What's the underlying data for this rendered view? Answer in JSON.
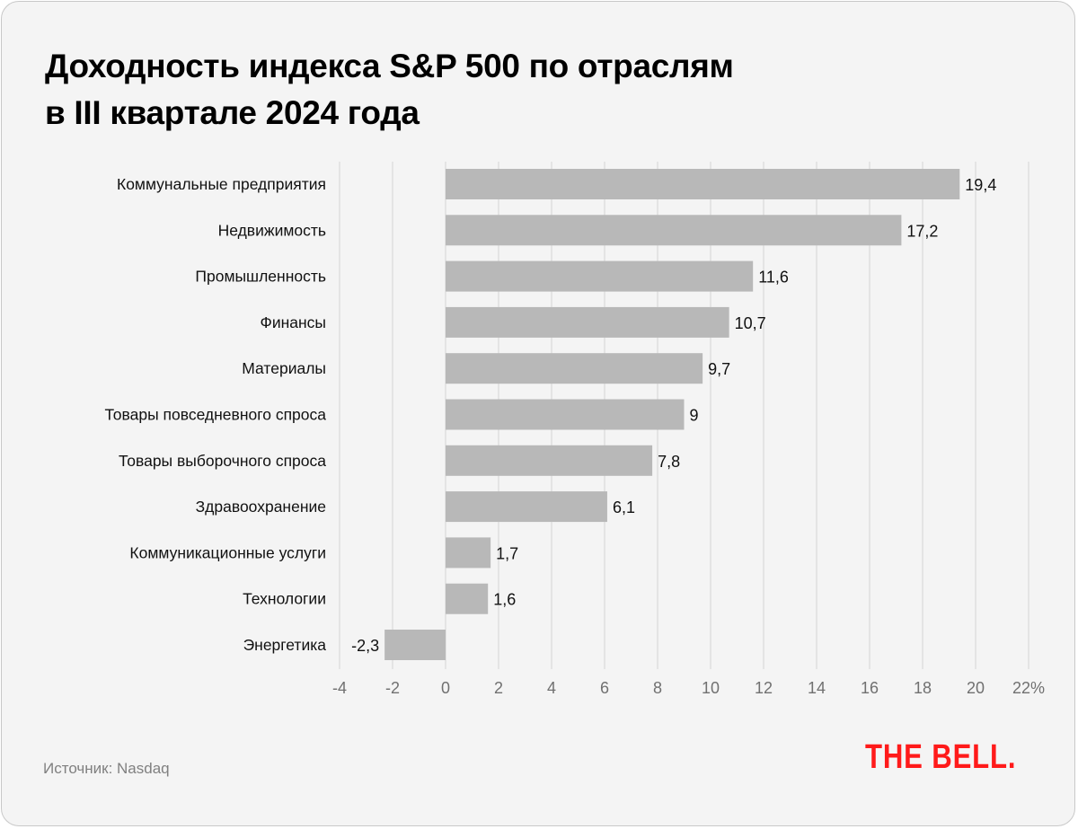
{
  "chart_data": {
    "type": "bar",
    "orientation": "horizontal",
    "title": "Доходность индекса S&P 500 по отраслям в III квартале 2024 года",
    "title_lines": [
      "Доходность индекса S&P 500 по отраслям",
      "в III квартале 2024 года"
    ],
    "categories": [
      "Коммунальные предприятия",
      "Недвижимость",
      "Промышленность",
      "Финансы",
      "Материалы",
      "Товары повседневного спроса",
      "Товары выборочного спроса",
      "Здравоохранение",
      "Коммуникационные услуги",
      "Технологии",
      "Энергетика"
    ],
    "values": [
      19.4,
      17.2,
      11.6,
      10.7,
      9.7,
      9,
      7.8,
      6.1,
      1.7,
      1.6,
      -2.3
    ],
    "value_labels": [
      "19,4",
      "17,2",
      "11,6",
      "10,7",
      "9,7",
      "9",
      "7,8",
      "6,1",
      "1,7",
      "1,6",
      "-2,3"
    ],
    "xlim": [
      -4,
      22
    ],
    "x_ticks": [
      -4,
      -2,
      0,
      2,
      4,
      6,
      8,
      10,
      12,
      14,
      16,
      18,
      20,
      22
    ],
    "x_tick_labels": [
      "-4",
      "-2",
      "0",
      "2",
      "4",
      "6",
      "8",
      "10",
      "12",
      "14",
      "16",
      "18",
      "20",
      "22%"
    ],
    "xlabel": "",
    "ylabel": "",
    "grid": true,
    "bar_color": "#b8b8b8",
    "grid_color": "#d4d4d4"
  },
  "footer": {
    "source": "Источник: Nasdaq",
    "logo": "THE BELL."
  },
  "colors": {
    "background": "#f4f4f4",
    "logo": "#ff1a1a"
  }
}
